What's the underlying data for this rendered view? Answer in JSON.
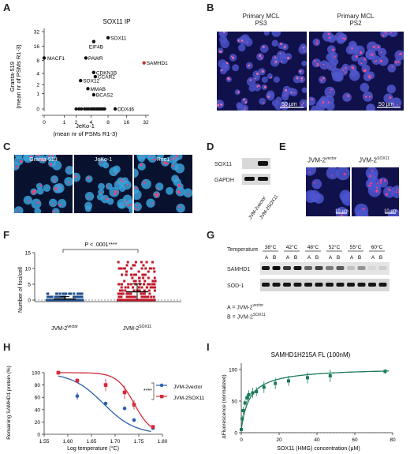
{
  "panels": {
    "A": "A",
    "B": "B",
    "C": "C",
    "D": "D",
    "E": "E",
    "F": "F",
    "G": "G",
    "H": "H",
    "I": "I"
  },
  "panelA": {
    "title": "SOX11 IP",
    "ylabel1": "Granta-519",
    "ylabel2": "(mean nr of PSMs R1-3)",
    "xlabel1": "JeKo-1",
    "xlabel2": "(mean nr of PSMs R1-3)",
    "xticks": [
      "0",
      "1",
      "2",
      "4",
      "8",
      "16",
      "32"
    ],
    "yticks": [
      "0",
      "1",
      "2",
      "4",
      "8",
      "16",
      "32"
    ],
    "highlight_color": "#c0392b",
    "points": [
      {
        "label": "SOX11",
        "x": 8,
        "y": 24
      },
      {
        "label": "EIF4B",
        "x": 4.5,
        "y": 20
      },
      {
        "label": "PAWR",
        "x": 3.2,
        "y": 9
      },
      {
        "label": "MACF1",
        "x": 0,
        "y": 9
      },
      {
        "label": "SAMHD1",
        "x": 30,
        "y": 7,
        "highlight": true
      },
      {
        "label": "CDKN1B",
        "x": 4.5,
        "y": 4.2
      },
      {
        "label": "CCAR2",
        "x": 4.8,
        "y": 3.3
      },
      {
        "label": "SOX12",
        "x": 2.5,
        "y": 2.6
      },
      {
        "label": "MMAB",
        "x": 3.5,
        "y": 1.5
      },
      {
        "label": "BCAS2",
        "x": 4.5,
        "y": 0.9
      },
      {
        "label": "DDX46",
        "x": 10.5,
        "y": 0
      }
    ],
    "zero_row_x": [
      2,
      2.3,
      2.6,
      3,
      3.3,
      3.6,
      4,
      4.3,
      4.6,
      5,
      5.3,
      5.6,
      6,
      6.3,
      6.7,
      7
    ]
  },
  "panelB": {
    "left_title1": "Primary MCL",
    "left_title2": "PS3",
    "right_title1": "Primary MCL",
    "right_title2": "PS2",
    "scale": "50 µm"
  },
  "panelC": {
    "labels": [
      "Granta-519",
      "JeKo-1",
      "Rec1"
    ]
  },
  "panelD": {
    "rows": [
      "SOX11",
      "GAPDH"
    ],
    "lanes": [
      "JVM-2vector",
      "JVM-2SOX11"
    ]
  },
  "panelE": {
    "left": "JVM-2",
    "left_sup": "vector",
    "right": "JVM-2",
    "right_sup": "SOX11",
    "scale": "10 µm"
  },
  "panelF": {
    "pvalue": "P < .0001****",
    "ylabel": "Number of foci/cell",
    "yticks": [
      "0",
      "5",
      "10",
      "15"
    ],
    "groups": [
      {
        "name": "JVM-2",
        "sup": "vector",
        "color": "#1f4e8c",
        "mean": 0.3
      },
      {
        "name": "JVM-2",
        "sup": "SOX11",
        "color": "#c0182a",
        "mean": 2.6
      }
    ]
  },
  "panelG": {
    "temp_label": "Temperature",
    "temps": [
      "38°C",
      "42°C",
      "48°C",
      "52°C",
      "55°C",
      "60°C"
    ],
    "lanes": [
      "A",
      "B"
    ],
    "rows": [
      "SAMHD1",
      "SOD-1"
    ],
    "legend_a": "A = JVM-2",
    "legend_a_sup": "vector",
    "legend_b": "B = JVM-2",
    "legend_b_sup": "SOX11"
  },
  "panelH": {
    "ylabel": "Remaining SAMHD1 protein (%)",
    "xlabel": "Log temperature (°C)",
    "xticks": [
      "1.55",
      "1.60",
      "1.65",
      "1.70",
      "1.75",
      "1.80"
    ],
    "yticks": [
      "0",
      "20",
      "40",
      "60",
      "80",
      "100"
    ],
    "sig": "****",
    "colors": {
      "vector": "#2a5da8",
      "sox11": "#d42a3a"
    }
  },
  "panelI": {
    "title": "SAMHD1H215A FL (100nM)",
    "ylabel": "ΔFluorescence (normalized)",
    "xlabel": "SOX11 (HMG) concentration (µM)",
    "xticks": [
      "0",
      "20",
      "40",
      "60",
      "80"
    ],
    "yticks": [
      "0",
      "50",
      "100"
    ],
    "color": "#1a7a5a"
  },
  "chart_data": [
    {
      "type": "scatter",
      "title": "SOX11 IP",
      "xlabel": "JeKo-1 (mean nr of PSMs R1-3)",
      "ylabel": "Granta-519 (mean nr of PSMs R1-3)",
      "scale": "log2",
      "xlim": [
        0,
        32
      ],
      "ylim": [
        0,
        32
      ],
      "series": [
        {
          "values": [
            {
              "label": "SOX11",
              "x": 8,
              "y": 24
            },
            {
              "label": "EIF4B",
              "x": 4.5,
              "y": 20
            },
            {
              "label": "PAWR",
              "x": 3.2,
              "y": 9
            },
            {
              "label": "MACF1",
              "x": 0,
              "y": 9
            },
            {
              "label": "SAMHD1",
              "x": 30,
              "y": 7
            },
            {
              "label": "CDKN1B",
              "x": 4.5,
              "y": 4.2
            },
            {
              "label": "CCAR2",
              "x": 4.8,
              "y": 3.3
            },
            {
              "label": "SOX12",
              "x": 2.5,
              "y": 2.6
            },
            {
              "label": "MMAB",
              "x": 3.5,
              "y": 1.5
            },
            {
              "label": "BCAS2",
              "x": 4.5,
              "y": 0.9
            },
            {
              "label": "DDX46",
              "x": 10.5,
              "y": 0
            }
          ]
        }
      ]
    },
    {
      "type": "scatter",
      "ylabel": "Number of foci/cell",
      "categories": [
        "JVM-2vector",
        "JVM-2SOX11"
      ],
      "ylim": [
        0,
        15
      ],
      "series": [
        {
          "name": "JVM-2vector",
          "mean": 0.3,
          "max": 2
        },
        {
          "name": "JVM-2SOX11",
          "mean": 2.6,
          "max": 13
        }
      ],
      "annotation": "P < .0001****"
    },
    {
      "type": "line",
      "xlabel": "Log temperature (°C)",
      "ylabel": "Remaining SAMHD1 protein (%)",
      "xlim": [
        1.55,
        1.8
      ],
      "ylim": [
        0,
        100
      ],
      "series": [
        {
          "name": "JVM-2vector",
          "x": [
            1.58,
            1.62,
            1.68,
            1.72,
            1.74,
            1.78
          ],
          "y": [
            100,
            62,
            50,
            42,
            23,
            10
          ],
          "err": [
            0,
            6,
            0,
            3,
            3,
            3
          ]
        },
        {
          "name": "JVM-2SOX11",
          "x": [
            1.58,
            1.62,
            1.68,
            1.72,
            1.74,
            1.78
          ],
          "y": [
            100,
            87,
            80,
            68,
            48,
            12
          ],
          "err": [
            0,
            4,
            10,
            11,
            8,
            3
          ]
        }
      ]
    },
    {
      "type": "line",
      "title": "SAMHD1H215A FL (100nM)",
      "xlabel": "SOX11 (HMG) concentration (µM)",
      "ylabel": "ΔFluorescence (normalized)",
      "xlim": [
        0,
        80
      ],
      "ylim": [
        0,
        110
      ],
      "series": [
        {
          "x": [
            0,
            0.5,
            1,
            2,
            3,
            4,
            6,
            8,
            12,
            18,
            25,
            35,
            47,
            76
          ],
          "y": [
            5,
            22,
            35,
            47,
            55,
            60,
            63,
            65,
            72,
            78,
            82,
            87,
            90,
            97
          ],
          "err": [
            2,
            5,
            6,
            5,
            6,
            7,
            8,
            7,
            9,
            9,
            8,
            9,
            10,
            4
          ]
        }
      ]
    }
  ]
}
